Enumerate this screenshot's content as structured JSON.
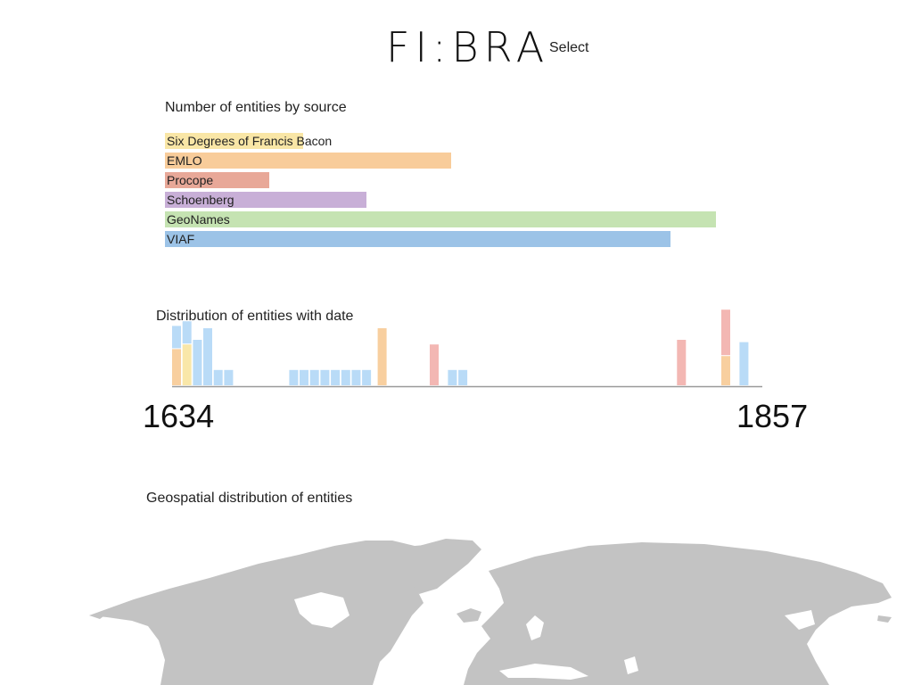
{
  "header": {
    "logo_text": "FI:BRA",
    "select_label": "Select"
  },
  "sources_section": {
    "title": "Number of entities by source",
    "sources": [
      {
        "name": "Six Degrees of Francis Bacon",
        "relative_count": 0.25,
        "color": "#f9e6a6"
      },
      {
        "name": "EMLO",
        "relative_count": 0.52,
        "color": "#f8cc9a"
      },
      {
        "name": "Procope",
        "relative_count": 0.19,
        "color": "#e8a898"
      },
      {
        "name": "Schoenberg",
        "relative_count": 0.365,
        "color": "#c8afd7"
      },
      {
        "name": "GeoNames",
        "relative_count": 1.0,
        "color": "#c5e3b2"
      },
      {
        "name": "VIAF",
        "relative_count": 0.918,
        "color": "#9cc3e7"
      }
    ]
  },
  "date_section": {
    "title": "Distribution of entities with date",
    "start_year": "1634",
    "end_year": "1857"
  },
  "map_section": {
    "title": "Geospatial distribution of entities",
    "land_color": "#c3c3c3"
  },
  "chart_data": {
    "type": "bar",
    "title": "Distribution of entities with date",
    "xlabel": "",
    "ylabel": "",
    "xlim": [
      1634,
      1857
    ],
    "stacked": true,
    "series_colors": {
      "VIAF": "#b9dbf7",
      "EMLO": "#f8cf9f",
      "Six Degrees of Francis Bacon": "#f9e7a9",
      "Procope": "#f3b7b3"
    },
    "bars": [
      {
        "year": 1634,
        "segments": [
          {
            "source": "EMLO",
            "value": 1.6
          },
          {
            "source": "VIAF",
            "value": 1.0
          }
        ]
      },
      {
        "year": 1638,
        "segments": [
          {
            "source": "Six Degrees of Francis Bacon",
            "value": 1.8
          },
          {
            "source": "VIAF",
            "value": 1.0
          }
        ]
      },
      {
        "year": 1642,
        "segments": [
          {
            "source": "VIAF",
            "value": 2.0
          }
        ]
      },
      {
        "year": 1646,
        "segments": [
          {
            "source": "VIAF",
            "value": 2.5
          }
        ]
      },
      {
        "year": 1650,
        "segments": [
          {
            "source": "VIAF",
            "value": 0.7
          }
        ]
      },
      {
        "year": 1654,
        "segments": [
          {
            "source": "VIAF",
            "value": 0.7
          }
        ]
      },
      {
        "year": 1679,
        "segments": [
          {
            "source": "VIAF",
            "value": 0.7
          }
        ]
      },
      {
        "year": 1683,
        "segments": [
          {
            "source": "VIAF",
            "value": 0.7
          }
        ]
      },
      {
        "year": 1687,
        "segments": [
          {
            "source": "VIAF",
            "value": 0.7
          }
        ]
      },
      {
        "year": 1691,
        "segments": [
          {
            "source": "VIAF",
            "value": 0.7
          }
        ]
      },
      {
        "year": 1695,
        "segments": [
          {
            "source": "VIAF",
            "value": 0.7
          }
        ]
      },
      {
        "year": 1699,
        "segments": [
          {
            "source": "VIAF",
            "value": 0.7
          }
        ]
      },
      {
        "year": 1703,
        "segments": [
          {
            "source": "VIAF",
            "value": 0.7
          }
        ]
      },
      {
        "year": 1707,
        "segments": [
          {
            "source": "VIAF",
            "value": 0.7
          }
        ]
      },
      {
        "year": 1713,
        "segments": [
          {
            "source": "EMLO",
            "value": 2.5
          }
        ]
      },
      {
        "year": 1733,
        "segments": [
          {
            "source": "Procope",
            "value": 1.8
          }
        ]
      },
      {
        "year": 1740,
        "segments": [
          {
            "source": "VIAF",
            "value": 0.7
          }
        ]
      },
      {
        "year": 1744,
        "segments": [
          {
            "source": "VIAF",
            "value": 0.7
          }
        ]
      },
      {
        "year": 1828,
        "segments": [
          {
            "source": "Procope",
            "value": 2.0
          }
        ]
      },
      {
        "year": 1845,
        "segments": [
          {
            "source": "EMLO",
            "value": 1.3
          },
          {
            "source": "Procope",
            "value": 2.0
          }
        ]
      },
      {
        "year": 1852,
        "segments": [
          {
            "source": "VIAF",
            "value": 1.9
          }
        ]
      }
    ]
  }
}
